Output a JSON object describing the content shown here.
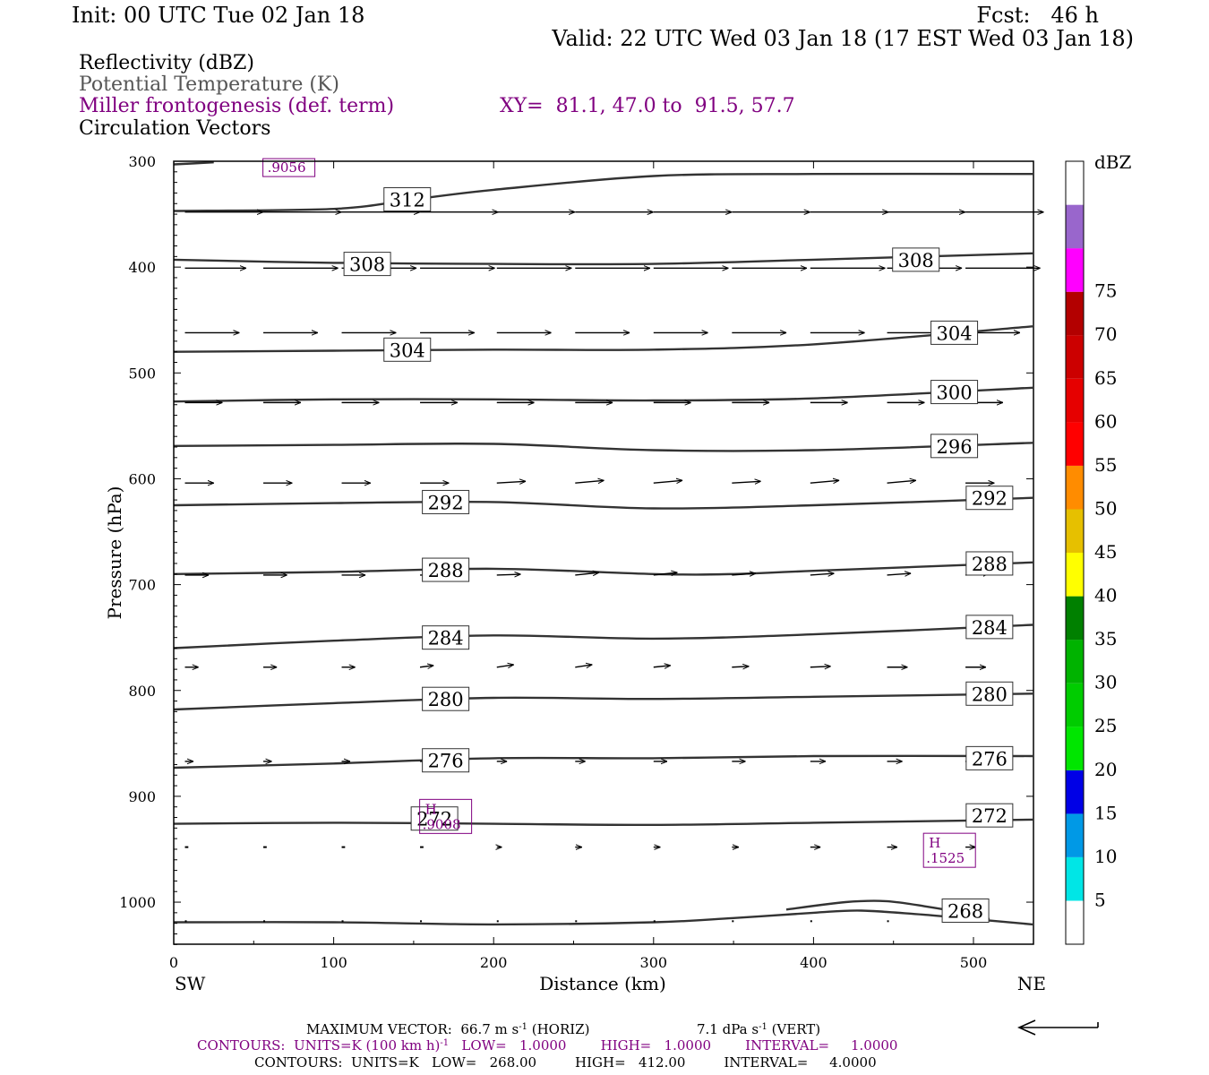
{
  "header": {
    "init": "Init: 00 UTC Tue 02 Jan 18",
    "fcst": "Fcst:   46 h",
    "valid": "Valid: 22 UTC Wed 03 Jan 18 (17 EST Wed 03 Jan 18)"
  },
  "legend": {
    "line1": "Reflectivity (dBZ)",
    "line2": "Potential Temperature (K)",
    "line3": "Miller frontogenesis (def. term)",
    "xy": "XY=  81.1, 47.0 to  91.5, 57.7",
    "line4": "Circulation Vectors"
  },
  "colors": {
    "black": "#000000",
    "gray": "#555555",
    "purple": "#800080",
    "contour": "#333333"
  },
  "chart_data": {
    "type": "line",
    "xlabel": "Distance (km)",
    "ylabel": "Pressure (hPa)",
    "xlim": [
      0,
      537
    ],
    "ylim": [
      1040,
      300
    ],
    "xticks": [
      0,
      100,
      200,
      300,
      400,
      500
    ],
    "xtick_labels": [
      "0",
      "100",
      "200",
      "300",
      "400",
      "500"
    ],
    "yticks": [
      300,
      400,
      500,
      600,
      700,
      800,
      900,
      1000
    ],
    "ytick_labels": [
      "300",
      "400",
      "500",
      "600",
      "700",
      "800",
      "900",
      "1000"
    ],
    "left_end_label": "SW",
    "right_end_label": "NE",
    "theta_contours": [
      {
        "value": 268,
        "label": "268",
        "points": [
          [
            0,
            1019
          ],
          [
            100,
            1019
          ],
          [
            200,
            1021
          ],
          [
            300,
            1019
          ],
          [
            350,
            1015
          ],
          [
            400,
            1010
          ],
          [
            430,
            1008
          ],
          [
            470,
            1012
          ],
          [
            500,
            1016
          ],
          [
            537,
            1021
          ]
        ],
        "labels_at": [
          [
            495,
            1008
          ]
        ]
      },
      {
        "value": 268,
        "label": "",
        "points": [
          [
            383,
            1007
          ],
          [
            420,
            1000
          ],
          [
            445,
            999
          ],
          [
            470,
            1004
          ],
          [
            500,
            1012
          ],
          [
            510,
            1016
          ]
        ],
        "labels_at": []
      },
      {
        "value": 272,
        "label": "272",
        "points": [
          [
            0,
            926
          ],
          [
            100,
            925
          ],
          [
            200,
            926
          ],
          [
            300,
            927
          ],
          [
            400,
            925
          ],
          [
            537,
            922
          ]
        ],
        "labels_at": [
          [
            163,
            921
          ],
          [
            510,
            918
          ]
        ]
      },
      {
        "value": 276,
        "label": "276",
        "points": [
          [
            0,
            873
          ],
          [
            100,
            869
          ],
          [
            200,
            864
          ],
          [
            300,
            864
          ],
          [
            400,
            862
          ],
          [
            537,
            862
          ]
        ],
        "labels_at": [
          [
            170,
            866
          ],
          [
            510,
            864
          ]
        ]
      },
      {
        "value": 280,
        "label": "280",
        "points": [
          [
            0,
            818
          ],
          [
            100,
            812
          ],
          [
            200,
            807
          ],
          [
            300,
            808
          ],
          [
            400,
            806
          ],
          [
            537,
            803
          ]
        ],
        "labels_at": [
          [
            170,
            808
          ],
          [
            510,
            803
          ]
        ]
      },
      {
        "value": 284,
        "label": "284",
        "points": [
          [
            0,
            760
          ],
          [
            100,
            753
          ],
          [
            200,
            748
          ],
          [
            300,
            751
          ],
          [
            400,
            747
          ],
          [
            537,
            738
          ]
        ],
        "labels_at": [
          [
            170,
            750
          ],
          [
            510,
            740
          ]
        ]
      },
      {
        "value": 288,
        "label": "288",
        "points": [
          [
            0,
            690
          ],
          [
            100,
            688
          ],
          [
            200,
            685
          ],
          [
            300,
            690
          ],
          [
            350,
            690
          ],
          [
            400,
            687
          ],
          [
            537,
            679
          ]
        ],
        "labels_at": [
          [
            170,
            686
          ],
          [
            510,
            680
          ]
        ]
      },
      {
        "value": 292,
        "label": "292",
        "points": [
          [
            0,
            625
          ],
          [
            100,
            623
          ],
          [
            200,
            622
          ],
          [
            300,
            628
          ],
          [
            400,
            625
          ],
          [
            537,
            618
          ]
        ],
        "labels_at": [
          [
            170,
            622
          ],
          [
            510,
            618
          ]
        ]
      },
      {
        "value": 296,
        "label": "296",
        "points": [
          [
            0,
            569
          ],
          [
            100,
            568
          ],
          [
            200,
            567
          ],
          [
            300,
            573
          ],
          [
            400,
            573
          ],
          [
            537,
            566
          ]
        ],
        "labels_at": [
          [
            488,
            569
          ]
        ]
      },
      {
        "value": 300,
        "label": "300",
        "points": [
          [
            0,
            527
          ],
          [
            100,
            525
          ],
          [
            200,
            525
          ],
          [
            300,
            526
          ],
          [
            400,
            524
          ],
          [
            537,
            514
          ]
        ],
        "labels_at": [
          [
            488,
            518
          ]
        ]
      },
      {
        "value": 304,
        "label": "304",
        "points": [
          [
            0,
            480
          ],
          [
            100,
            479
          ],
          [
            200,
            478
          ],
          [
            300,
            478
          ],
          [
            400,
            473
          ],
          [
            537,
            456
          ]
        ],
        "labels_at": [
          [
            146,
            478
          ],
          [
            488,
            462
          ]
        ]
      },
      {
        "value": 308,
        "label": "308",
        "points": [
          [
            0,
            393
          ],
          [
            100,
            396
          ],
          [
            200,
            397
          ],
          [
            300,
            397
          ],
          [
            400,
            393
          ],
          [
            537,
            387
          ]
        ],
        "labels_at": [
          [
            121,
            397
          ],
          [
            464,
            393
          ]
        ]
      },
      {
        "value": 312,
        "label": "312",
        "points": [
          [
            0,
            347
          ],
          [
            100,
            345
          ],
          [
            150,
            336
          ],
          [
            200,
            327
          ],
          [
            300,
            314
          ],
          [
            400,
            312
          ],
          [
            537,
            312
          ]
        ],
        "labels_at": [
          [
            146,
            336
          ]
        ]
      },
      {
        "value": 316,
        "label": "",
        "points": [
          [
            0,
            303
          ],
          [
            25,
            301
          ]
        ],
        "labels_at": []
      }
    ],
    "frontogenesis_annotations": [
      {
        "label": ".9056",
        "x": 72,
        "p": 306
      },
      {
        "text": "H",
        "label": ".9008",
        "x": 170,
        "p": 919
      },
      {
        "text": "H",
        "label": ".1525",
        "x": 485,
        "p": 951
      }
    ],
    "vectors": {
      "columns_km": [
        7,
        56,
        105,
        154,
        202,
        251,
        300,
        349,
        398,
        446,
        495
      ],
      "levels": [
        {
          "p": 348,
          "u": [
            4.6,
            4.6,
            4.6,
            4.6,
            4.6,
            4.6,
            4.6,
            4.6,
            4.6,
            4.6,
            4.6
          ],
          "w": [
            0,
            0,
            0,
            0,
            0,
            0,
            0,
            0,
            0,
            0,
            0
          ]
        },
        {
          "p": 401,
          "u": [
            3.6,
            4.4,
            4.4,
            4.4,
            4.4,
            4.4,
            4.4,
            4.4,
            4.4,
            4.4,
            4.4
          ],
          "w": [
            0,
            0,
            0,
            0,
            0,
            0,
            0,
            0,
            0,
            0,
            0
          ]
        },
        {
          "p": 462,
          "u": [
            3.2,
            3.2,
            3.2,
            3.2,
            3.2,
            3.2,
            3.2,
            3.2,
            3.2,
            3.2,
            3.2
          ],
          "w": [
            0,
            0,
            0,
            0,
            0,
            0,
            0,
            0,
            0,
            0,
            0
          ]
        },
        {
          "p": 528,
          "u": [
            2.2,
            2.2,
            2.2,
            2.2,
            2.2,
            2.2,
            2.2,
            2.2,
            2.2,
            2.2,
            2.2
          ],
          "w": [
            0,
            0,
            0,
            0,
            0,
            0,
            0,
            0,
            0,
            0,
            0
          ]
        },
        {
          "p": 604,
          "u": [
            1.7,
            1.7,
            1.7,
            1.7,
            1.7,
            1.7,
            1.7,
            1.7,
            1.7,
            1.7,
            1.7
          ],
          "w": [
            0,
            0,
            0,
            0,
            0.1,
            0.15,
            0.15,
            0.1,
            0.15,
            0.15,
            0
          ]
        },
        {
          "p": 691,
          "u": [
            1.4,
            1.4,
            1.4,
            1.4,
            1.4,
            1.4,
            1.4,
            1.4,
            1.4,
            1.4,
            1.4
          ],
          "w": [
            0,
            0,
            0,
            0,
            0.05,
            0.15,
            0.15,
            0.1,
            0.1,
            0.1,
            0.1
          ]
        },
        {
          "p": 778,
          "u": [
            0.8,
            0.8,
            0.8,
            0.8,
            1.0,
            1.0,
            1.0,
            1.0,
            1.2,
            1.2,
            1.2
          ],
          "w": [
            0,
            0,
            0,
            0.1,
            0.15,
            0.15,
            0.1,
            0.05,
            0.05,
            0,
            0
          ]
        },
        {
          "p": 867,
          "u": [
            0.5,
            0.5,
            0.5,
            0.5,
            0.6,
            0.6,
            0.8,
            0.8,
            0.9,
            0.9,
            0.9
          ],
          "w": [
            0,
            0,
            0,
            0,
            0,
            0,
            0,
            0,
            0,
            0,
            0
          ]
        },
        {
          "p": 948,
          "u": [
            0.2,
            0.2,
            0.2,
            0.2,
            0.3,
            0.4,
            0.4,
            0.4,
            0.6,
            0.6,
            0.6
          ],
          "w": [
            0,
            0,
            0,
            0,
            0,
            0,
            0,
            0,
            0,
            0,
            0
          ]
        },
        {
          "p": 1018,
          "u": [
            0.1,
            0.1,
            0.1,
            0.1,
            0.1,
            0.1,
            0.1,
            0.1,
            0.1,
            0.1,
            0.1
          ],
          "w": [
            0,
            0,
            0,
            0,
            0,
            0,
            0,
            0,
            0,
            0,
            0
          ]
        }
      ]
    },
    "reflectivity_colorbar": {
      "title": "dBZ",
      "levels": [
        5,
        10,
        15,
        20,
        25,
        30,
        35,
        40,
        45,
        50,
        55,
        60,
        65,
        70,
        75
      ],
      "labels": [
        "5",
        "10",
        "15",
        "20",
        "25",
        "30",
        "35",
        "40",
        "45",
        "50",
        "55",
        "60",
        "65",
        "70",
        "75"
      ],
      "colors": [
        "#ffffff",
        "#00e6e6",
        "#0099e6",
        "#0000e6",
        "#00e600",
        "#00cc00",
        "#00b300",
        "#008000",
        "#ffff00",
        "#e6c000",
        "#ff8c00",
        "#ff0000",
        "#e60000",
        "#cc0000",
        "#b30000",
        "#ff00ff",
        "#9966cc",
        "#ffffff"
      ]
    }
  },
  "footer": {
    "line1_left": "MAXIMUM VECTOR:  66.7 m s",
    "line1_left_sup": "-1",
    "line1_left_end": " (HORIZ)",
    "line1_right": "7.1 dPa s",
    "line1_right_sup": "-1",
    "line1_right_end": " (VERT)",
    "line2_a": "CONTOURS:  UNITS=K (100 km h)",
    "line2_sup": "-1",
    "line2_b": "   LOW=   1.0000        HIGH=   1.0000        INTERVAL=     1.0000",
    "line3": "CONTOURS:  UNITS=K   LOW=   268.00         HIGH=   412.00         INTERVAL=     4.0000"
  }
}
